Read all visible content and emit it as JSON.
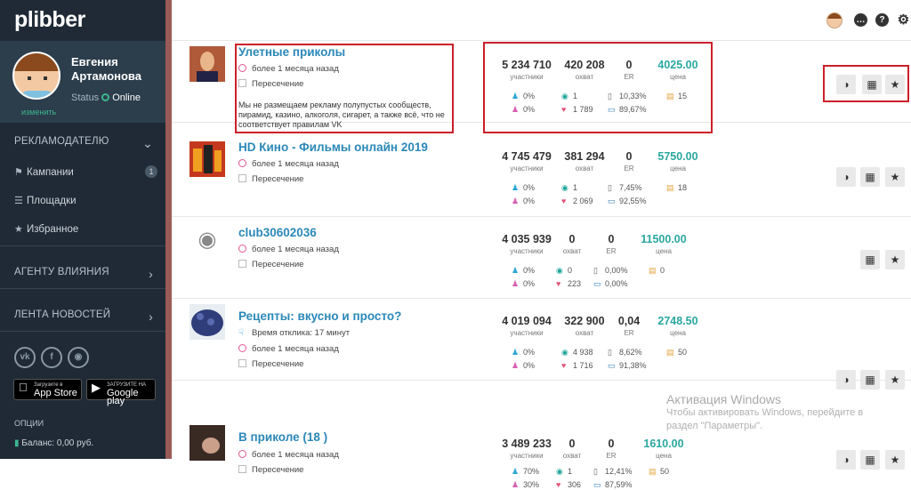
{
  "app": {
    "logo": "plibber"
  },
  "profile": {
    "first_name": "Евгения",
    "last_name": "Артамонова",
    "edit": "изменить",
    "status_label": "Status",
    "status_value": "Online"
  },
  "sidebar": {
    "advertiser": "РЕКЛАМОДАТЕЛЮ",
    "items": [
      {
        "label": "Кампании",
        "icon": "megaphone-icon",
        "badge": "1"
      },
      {
        "label": "Площадки",
        "icon": "list-icon"
      },
      {
        "label": "Избранное",
        "icon": "star-icon"
      }
    ],
    "agent": "АГЕНТУ ВЛИЯНИЯ",
    "news": "ЛЕНТА НОВОСТЕЙ",
    "social": [
      "vk-icon",
      "facebook-icon",
      "instagram-icon"
    ],
    "appstore": {
      "small": "Загрузите в",
      "big": "App Store"
    },
    "googleplay": {
      "small": "ЗАГРУЗИТЕ НА",
      "big": "Google play"
    },
    "options": "ОПЦИИ",
    "balance": "Баланс: 0,00 руб."
  },
  "topbar": {
    "icons": [
      "user-avatar",
      "chat-icon",
      "help-icon",
      "settings-icon"
    ]
  },
  "labels": {
    "members": "участники",
    "reach": "охват",
    "er": "ER",
    "price": "цена",
    "overlap": "Пересечение"
  },
  "rows": [
    {
      "title": "Улетные приколы",
      "time": "более 1 месяца назад",
      "response": "",
      "note": "Мы не размещаем рекламу полупустых сообществ, пирамид, казино, алкоголя, сигарет, а также всё, что не соответствует правилам VK",
      "members": "5 234 710",
      "reach": "420 208",
      "er": "0",
      "price": "4025.00",
      "male": "0%",
      "female": "0%",
      "reposts": "1",
      "likes": "1 789",
      "mobile": "10,33%",
      "desktop": "89,67%",
      "posts": "15",
      "actions": [
        "stats",
        "calendar",
        "favorite"
      ]
    },
    {
      "title": "HD Кино - Фильмы онлайн 2019",
      "time": "более 1 месяца назад",
      "response": "",
      "note": "",
      "members": "4 745 479",
      "reach": "381 294",
      "er": "0",
      "price": "5750.00",
      "male": "0%",
      "female": "0%",
      "reposts": "1",
      "likes": "2 069",
      "mobile": "7,45%",
      "desktop": "92,55%",
      "posts": "18",
      "actions": [
        "stats",
        "calendar",
        "favorite"
      ]
    },
    {
      "title": "club30602036",
      "time": "более 1 месяца назад",
      "response": "",
      "note": "",
      "members": "4 035 939",
      "reach": "0",
      "er": "0",
      "price": "11500.00",
      "male": "0%",
      "female": "0%",
      "reposts": "0",
      "likes": "223",
      "mobile": "0,00%",
      "desktop": "0,00%",
      "posts": "0",
      "actions": [
        "calendar",
        "favorite"
      ]
    },
    {
      "title": "Рецепты: вкусно и просто?",
      "time": "более 1 месяца назад",
      "response": "Время отклика: 17 минут",
      "note": "",
      "members": "4 019 094",
      "reach": "322 900",
      "er": "0,04",
      "price": "2748.50",
      "male": "0%",
      "female": "0%",
      "reposts": "4 938",
      "likes": "1 716",
      "mobile": "8,62%",
      "desktop": "91,38%",
      "posts": "50",
      "actions": [
        "stats",
        "calendar",
        "favorite"
      ]
    },
    {
      "title": "В приколе (18 )",
      "time": "более 1 месяца назад",
      "response": "",
      "note": "",
      "members": "3 489 233",
      "reach": "0",
      "er": "0",
      "price": "1610.00",
      "male": "70%",
      "female": "30%",
      "reposts": "1",
      "likes": "306",
      "mobile": "12,41%",
      "desktop": "87,59%",
      "posts": "50",
      "actions": [
        "stats",
        "calendar",
        "favorite"
      ]
    }
  ],
  "watermark": {
    "line1": "Активация Windows",
    "line2": "Чтобы активировать Windows, перейдите в",
    "line3": "раздел \"Параметры\"."
  },
  "colors": {
    "sidebar": "#1f2a36",
    "link": "#2a88b8",
    "price": "#2aa7a0",
    "highlight": "#cc1f2a"
  }
}
